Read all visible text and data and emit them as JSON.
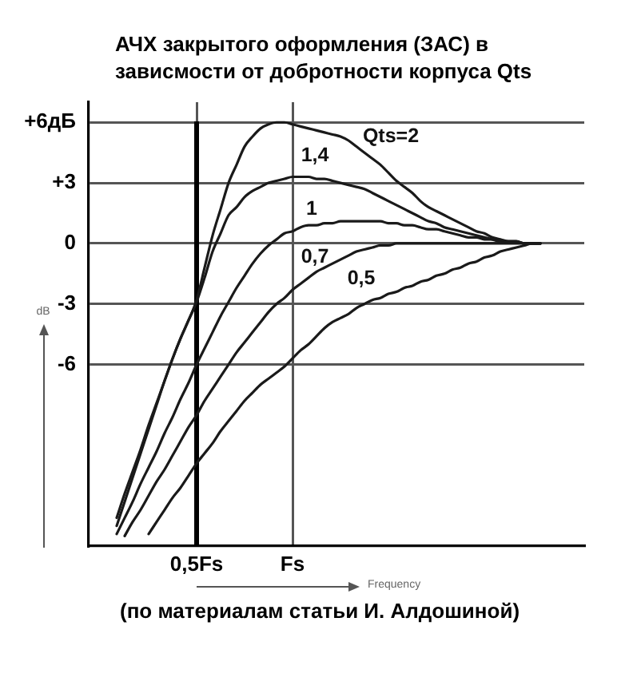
{
  "chart_data": {
    "type": "line",
    "title": "АЧХ закрытого оформления (ЗАС) в зависмости от добротности корпуса Qts",
    "xlabel": "Frequency",
    "ylabel": "dB",
    "categories": [
      null,
      null,
      null,
      null,
      null,
      null,
      null,
      null,
      null,
      null,
      null,
      null,
      null,
      "0,5Fs",
      null,
      null,
      null,
      null,
      null,
      null,
      null,
      null,
      null,
      null,
      null,
      "Fs",
      null,
      null,
      null,
      null,
      null,
      null,
      null,
      null,
      null,
      null,
      null,
      null,
      null,
      null,
      null,
      null,
      null,
      null,
      null,
      null,
      null,
      null,
      null,
      null,
      null,
      null,
      null,
      null,
      null,
      null,
      null,
      null,
      null,
      null,
      null,
      null
    ],
    "ylim": [
      -15,
      7
    ],
    "yticks": [
      {
        "value": 6,
        "label": "+6дБ"
      },
      {
        "value": 3,
        "label": "+3"
      },
      0,
      -3,
      -6
    ],
    "grid": true,
    "ref_lines": [
      {
        "axis": "x",
        "value": "0,5Fs",
        "color": "#000000"
      }
    ],
    "series": [
      {
        "name": "Qts=2",
        "color": "#1a1a1a",
        "values": [
          null,
          null,
          null,
          -13.6,
          -12.4,
          -11.3,
          -10.2,
          -9.0,
          -7.9,
          -6.8,
          -5.7,
          -4.7,
          -3.8,
          -2.8,
          -1.2,
          0.4,
          1.7,
          3.0,
          3.9,
          4.8,
          5.3,
          5.7,
          5.9,
          6.0,
          6.0,
          5.9,
          5.8,
          5.7,
          5.6,
          5.5,
          5.4,
          5.3,
          5.1,
          4.8,
          4.5,
          4.2,
          3.9,
          3.5,
          3.1,
          2.8,
          2.5,
          2.1,
          1.8,
          1.6,
          1.4,
          1.2,
          1.0,
          0.8,
          0.6,
          0.5,
          0.3,
          0.2,
          0.1,
          0.1,
          0,
          0,
          0,
          null,
          null,
          null,
          null,
          null
        ]
      },
      {
        "name": "1,4",
        "color": "#1a1a1a",
        "values": [
          null,
          null,
          null,
          -14.0,
          -12.8,
          -11.6,
          -10.4,
          -9.2,
          -8.0,
          -6.8,
          -5.7,
          -4.7,
          -3.8,
          -2.9,
          -1.7,
          -0.4,
          0.5,
          1.4,
          1.8,
          2.3,
          2.6,
          2.8,
          3.0,
          3.1,
          3.2,
          3.3,
          3.3,
          3.3,
          3.2,
          3.2,
          3.1,
          3.0,
          2.9,
          2.8,
          2.7,
          2.5,
          2.3,
          2.1,
          1.9,
          1.7,
          1.5,
          1.3,
          1.1,
          1.0,
          0.8,
          0.7,
          0.6,
          0.5,
          0.4,
          0.3,
          0.2,
          0.1,
          0.1,
          0.1,
          0,
          0,
          0,
          null,
          null,
          null,
          null,
          null
        ]
      },
      {
        "name": "1",
        "color": "#1a1a1a",
        "values": [
          null,
          null,
          null,
          -14.4,
          -13.6,
          -12.8,
          -11.9,
          -11.1,
          -10.3,
          -9.4,
          -8.6,
          -7.7,
          -6.9,
          -6.0,
          -5.2,
          -4.4,
          -3.6,
          -2.9,
          -2.2,
          -1.6,
          -1.0,
          -0.5,
          -0.1,
          0.2,
          0.5,
          0.6,
          0.8,
          0.9,
          0.9,
          1.0,
          1.0,
          1.1,
          1.1,
          1.1,
          1.1,
          1.1,
          1.1,
          1.0,
          1.0,
          0.9,
          0.9,
          0.8,
          0.7,
          0.7,
          0.6,
          0.5,
          0.4,
          0.3,
          0.3,
          0.2,
          0.2,
          0.1,
          0.1,
          0.1,
          0,
          0,
          0,
          null,
          null,
          null,
          null,
          null
        ]
      },
      {
        "name": "0,7",
        "color": "#1a1a1a",
        "values": [
          null,
          null,
          null,
          null,
          -14.5,
          -13.8,
          -13.2,
          -12.5,
          -11.8,
          -11.2,
          -10.5,
          -9.8,
          -9.1,
          -8.5,
          -7.8,
          -7.2,
          -6.6,
          -6.0,
          -5.4,
          -4.9,
          -4.4,
          -3.9,
          -3.4,
          -3.0,
          -2.7,
          -2.3,
          -2.0,
          -1.7,
          -1.4,
          -1.2,
          -1.0,
          -0.8,
          -0.6,
          -0.4,
          -0.3,
          -0.2,
          -0.1,
          -0.1,
          0,
          0,
          0,
          0,
          0,
          0,
          0,
          0,
          0,
          0,
          0,
          0,
          0,
          0,
          0,
          0,
          0,
          0,
          0,
          null,
          null,
          null,
          null,
          null
        ]
      },
      {
        "name": "0,5",
        "color": "#1a1a1a",
        "values": [
          null,
          null,
          null,
          null,
          null,
          null,
          null,
          -14.4,
          -13.8,
          -13.2,
          -12.6,
          -12.1,
          -11.5,
          -10.9,
          -10.4,
          -9.9,
          -9.3,
          -8.8,
          -8.3,
          -7.8,
          -7.4,
          -7.0,
          -6.7,
          -6.4,
          -6.1,
          -5.7,
          -5.3,
          -5.0,
          -4.6,
          -4.2,
          -3.9,
          -3.7,
          -3.5,
          -3.2,
          -3.0,
          -2.8,
          -2.7,
          -2.5,
          -2.4,
          -2.2,
          -2.1,
          -1.9,
          -1.8,
          -1.6,
          -1.5,
          -1.3,
          -1.2,
          -1.0,
          -0.9,
          -0.7,
          -0.6,
          -0.4,
          -0.3,
          -0.2,
          -0.1,
          0,
          0,
          null,
          null,
          null,
          null,
          null
        ]
      }
    ],
    "annotations": [
      "(по материалам статьи И. Алдошиной)"
    ]
  }
}
